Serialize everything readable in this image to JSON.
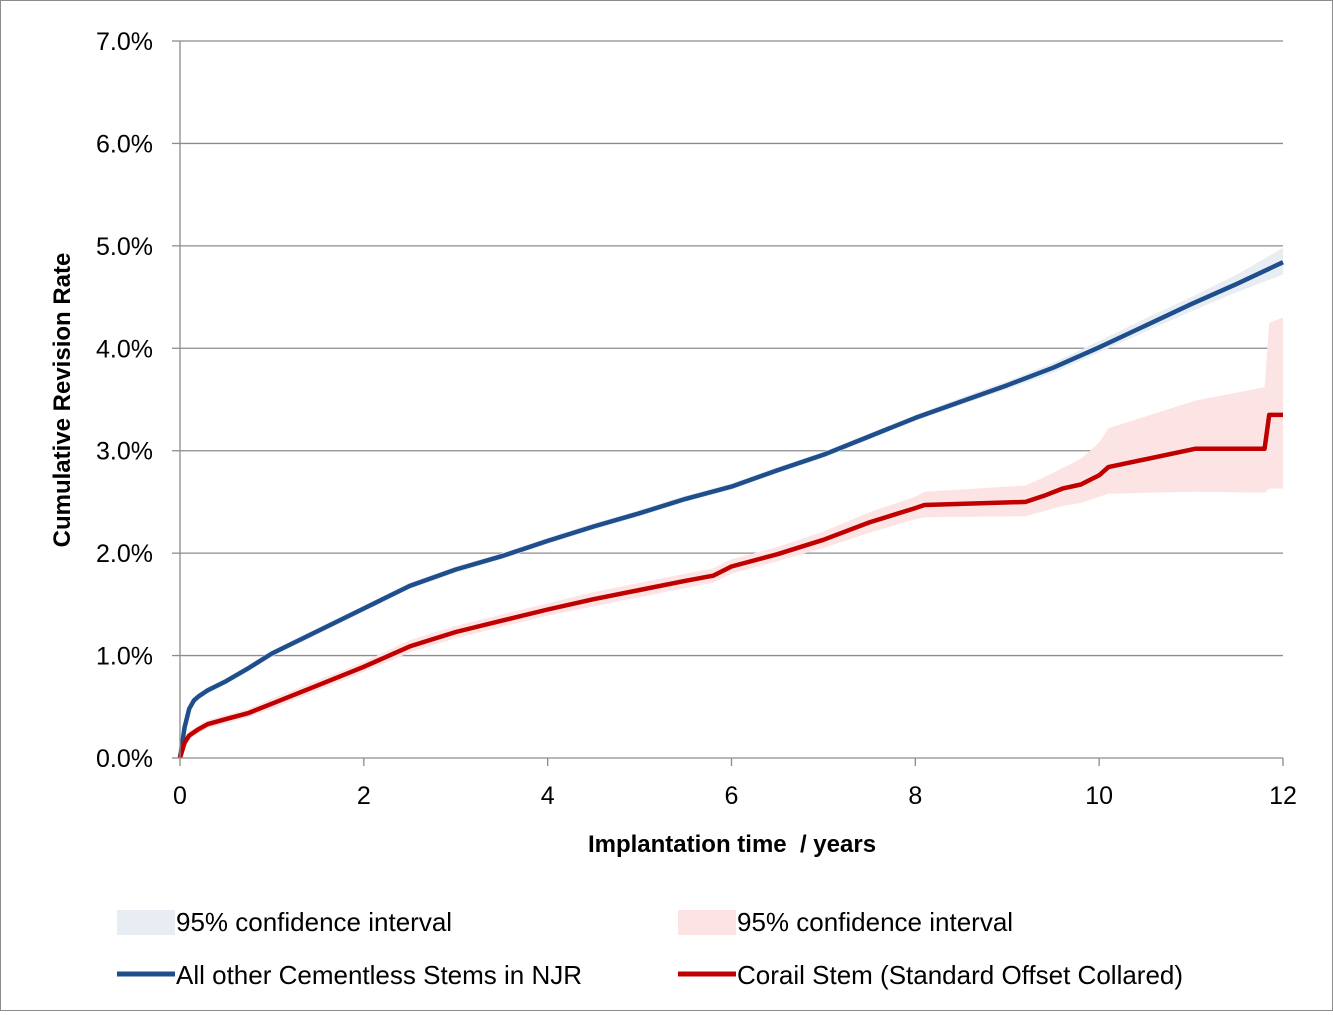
{
  "chart_data": {
    "type": "line",
    "xlabel": "Implantation time  / years",
    "ylabel": "Cumulative Revision Rate",
    "xlim": [
      0,
      12
    ],
    "ylim": [
      0,
      0.07
    ],
    "x_ticks": [
      0,
      2,
      4,
      6,
      8,
      10,
      12
    ],
    "x_tick_labels": [
      "0",
      "2",
      "4",
      "6",
      "8",
      "10",
      "12"
    ],
    "y_ticks": [
      0,
      0.01,
      0.02,
      0.03,
      0.04,
      0.05,
      0.06,
      0.07
    ],
    "y_tick_labels": [
      "0.0%",
      "1.0%",
      "2.0%",
      "3.0%",
      "4.0%",
      "5.0%",
      "6.0%",
      "7.0%"
    ],
    "grid": "horizontal",
    "legend_position": "bottom",
    "series": [
      {
        "name": "All other Cementless Stems in NJR",
        "color": "#1f4e8c",
        "band_name": "95% confidence interval",
        "band_color": "#e8ecf3",
        "x": [
          0,
          0.05,
          0.1,
          0.15,
          0.2,
          0.3,
          0.5,
          0.75,
          1,
          1.5,
          2,
          2.5,
          3,
          3.5,
          4,
          4.5,
          5,
          5.5,
          6,
          6.5,
          7,
          7.5,
          8,
          8.5,
          9,
          9.5,
          10,
          10.5,
          11,
          11.5,
          12
        ],
        "y": [
          0,
          0.003,
          0.0048,
          0.0056,
          0.006,
          0.0066,
          0.0075,
          0.0088,
          0.0102,
          0.0124,
          0.0146,
          0.0168,
          0.0184,
          0.0197,
          0.0212,
          0.0226,
          0.0239,
          0.0253,
          0.0265,
          0.0281,
          0.0296,
          0.0314,
          0.0332,
          0.0348,
          0.0364,
          0.0381,
          0.0401,
          0.0422,
          0.0443,
          0.0463,
          0.0484
        ],
        "lower": [
          0,
          0.0027,
          0.0045,
          0.0053,
          0.0057,
          0.0063,
          0.0072,
          0.0085,
          0.0099,
          0.0121,
          0.0143,
          0.0165,
          0.0181,
          0.0194,
          0.0209,
          0.0223,
          0.0236,
          0.025,
          0.0262,
          0.0278,
          0.0293,
          0.0311,
          0.0329,
          0.0345,
          0.036,
          0.0376,
          0.0396,
          0.0416,
          0.0436,
          0.0455,
          0.0472
        ],
        "upper": [
          0,
          0.0033,
          0.0051,
          0.0059,
          0.0063,
          0.0069,
          0.0078,
          0.0091,
          0.0105,
          0.0127,
          0.0149,
          0.0171,
          0.0187,
          0.02,
          0.0215,
          0.0229,
          0.0242,
          0.0256,
          0.0268,
          0.0284,
          0.0299,
          0.0317,
          0.0335,
          0.0352,
          0.0368,
          0.0386,
          0.0407,
          0.0429,
          0.045,
          0.0472,
          0.0498
        ]
      },
      {
        "name": "Corail Stem (Standard Offset Collared)",
        "color": "#c00000",
        "band_name": "95% confidence interval",
        "band_color": "#fde4e4",
        "x": [
          0,
          0.05,
          0.1,
          0.2,
          0.3,
          0.5,
          0.75,
          1,
          1.5,
          2,
          2.5,
          3,
          3.5,
          4,
          4.5,
          5,
          5.5,
          5.8,
          6,
          6.5,
          7,
          7.5,
          8,
          8.1,
          9.2,
          9.4,
          9.6,
          9.8,
          10,
          10.1,
          11.05,
          11.8,
          11.85,
          12
        ],
        "y": [
          0,
          0.0015,
          0.0022,
          0.0028,
          0.0033,
          0.0038,
          0.0044,
          0.0053,
          0.0071,
          0.0089,
          0.0109,
          0.0123,
          0.0134,
          0.0145,
          0.0155,
          0.0164,
          0.0173,
          0.0178,
          0.0187,
          0.0199,
          0.0213,
          0.023,
          0.0244,
          0.0247,
          0.025,
          0.0256,
          0.0263,
          0.0267,
          0.0276,
          0.0284,
          0.0302,
          0.0302,
          0.0335,
          0.0335
        ],
        "lower": [
          0,
          0.0011,
          0.0018,
          0.0024,
          0.0029,
          0.0034,
          0.004,
          0.0048,
          0.0066,
          0.0084,
          0.0103,
          0.0117,
          0.0128,
          0.0139,
          0.0148,
          0.0157,
          0.0166,
          0.0171,
          0.018,
          0.0192,
          0.0205,
          0.022,
          0.0233,
          0.0235,
          0.0236,
          0.0241,
          0.0246,
          0.0249,
          0.0255,
          0.0258,
          0.026,
          0.0259,
          0.0263,
          0.0263
        ],
        "upper": [
          0,
          0.0019,
          0.0026,
          0.0032,
          0.0037,
          0.0042,
          0.0048,
          0.0058,
          0.0076,
          0.0094,
          0.0115,
          0.0129,
          0.014,
          0.0151,
          0.0162,
          0.0171,
          0.018,
          0.0185,
          0.0194,
          0.0206,
          0.0221,
          0.024,
          0.0255,
          0.026,
          0.0266,
          0.0274,
          0.0283,
          0.0292,
          0.0308,
          0.0322,
          0.0349,
          0.0362,
          0.0425,
          0.043
        ]
      }
    ]
  }
}
